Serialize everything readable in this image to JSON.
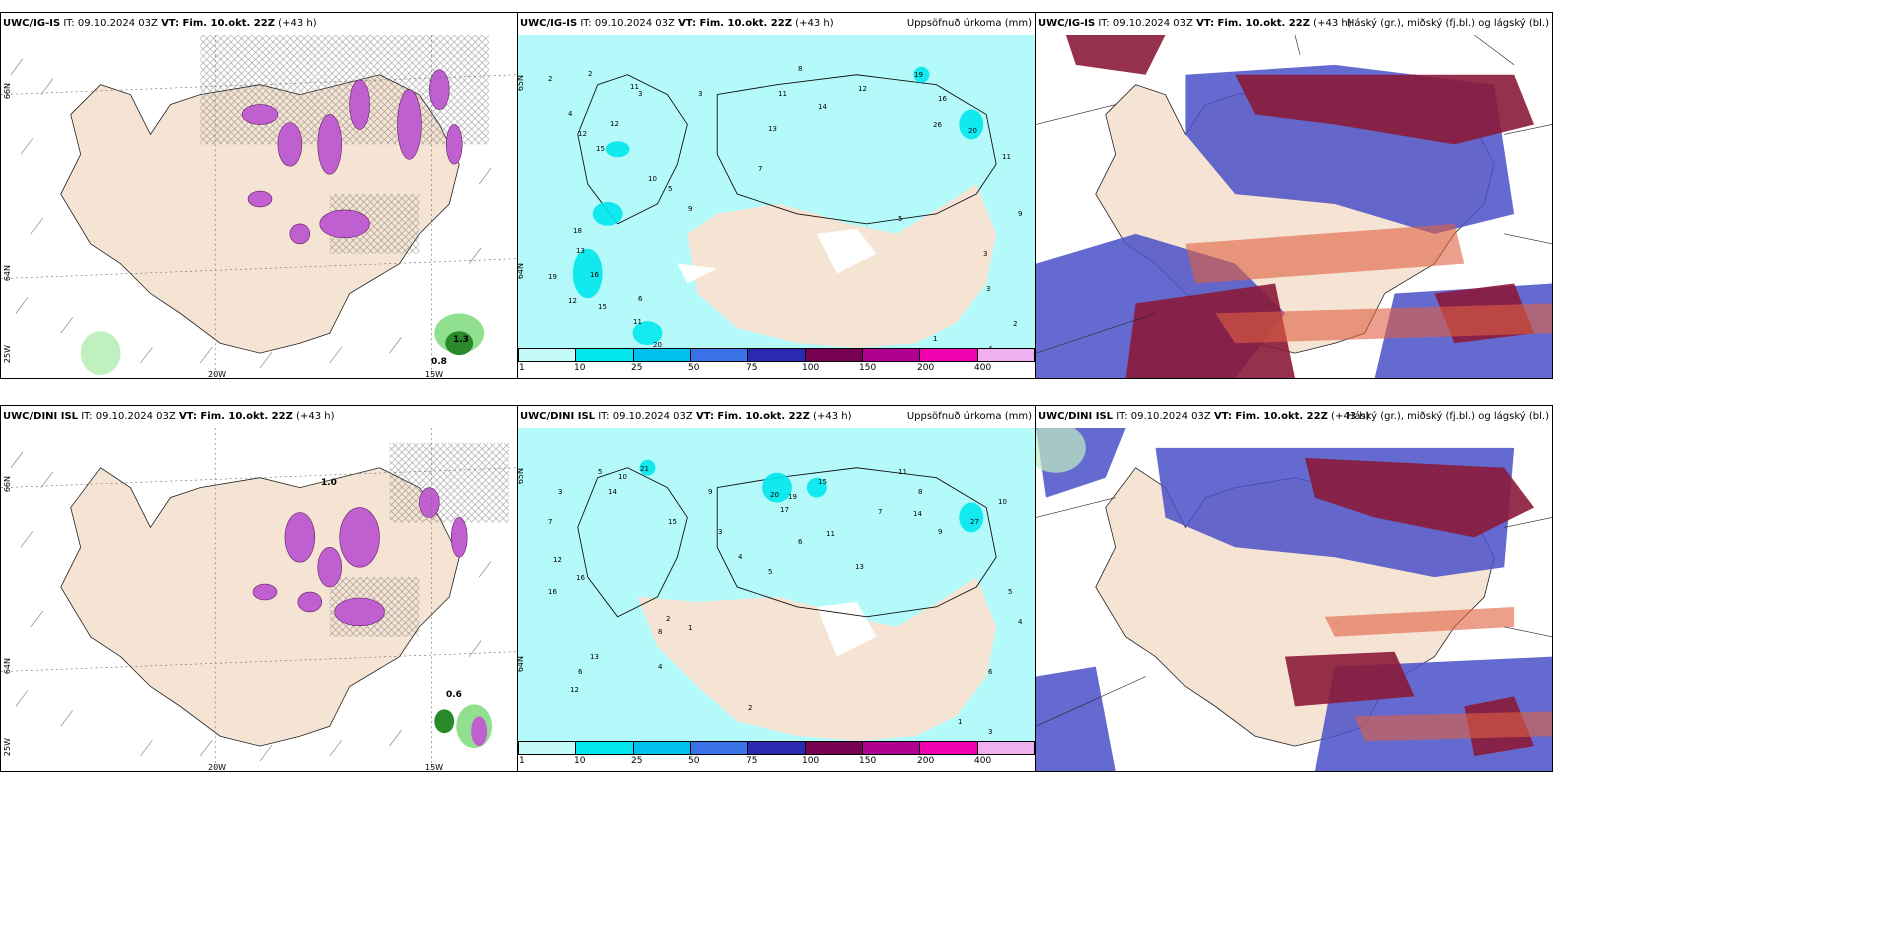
{
  "rows": [
    {
      "model": "UWC/IG-IS",
      "panels": [
        {
          "id": "wind",
          "model": "UWC/IG-IS",
          "it": "IT: 09.10.2024 03Z",
          "vt": "VT: Fim. 10.okt. 22Z",
          "lead": "(+43 h)",
          "right": "",
          "lat_labels": [
            "66N",
            "64N",
            "25W"
          ],
          "lon_labels": [
            "20W",
            "15W"
          ],
          "values": [
            "0.8",
            "1.3"
          ]
        },
        {
          "id": "precip",
          "model": "UWC/IG-IS",
          "it": "IT: 09.10.2024 03Z",
          "vt": "VT: Fim. 10.okt. 22Z",
          "lead": "(+43 h)",
          "right": "Uppsöfnuð úrkoma (mm)",
          "lat_labels": [
            "65N",
            "64N"
          ],
          "numbers": [
            "2",
            "2",
            "3",
            "4",
            "11",
            "12",
            "12",
            "15",
            "18",
            "13",
            "16",
            "19",
            "12",
            "15",
            "11",
            "20",
            "3",
            "5",
            "6",
            "7",
            "8",
            "9",
            "10",
            "11",
            "12",
            "13",
            "14",
            "16",
            "19",
            "26",
            "20",
            "11",
            "9",
            "3",
            "2",
            "5",
            "1",
            "2",
            "2",
            "4",
            "3"
          ]
        },
        {
          "id": "cloud",
          "model": "UWC/IG-IS",
          "it": "IT: 09.10.2024 03Z",
          "vt": "VT: Fim. 10.okt. 22Z",
          "lead": "(+43 h)",
          "right": "Háský (gr.), miðský (fj.bl.) og lágský (bl.)"
        }
      ]
    },
    {
      "model": "UWC/DINI ISL",
      "panels": [
        {
          "id": "wind",
          "model": "UWC/DINI ISL",
          "it": "IT: 09.10.2024 03Z",
          "vt": "VT: Fim. 10.okt. 22Z",
          "lead": "(+43 h)",
          "right": "",
          "lat_labels": [
            "66N",
            "64N",
            "25W"
          ],
          "lon_labels": [
            "20W",
            "15W"
          ],
          "values": [
            "1.0",
            "0.6"
          ]
        },
        {
          "id": "precip",
          "model": "UWC/DINI ISL",
          "it": "IT: 09.10.2024 03Z",
          "vt": "VT: Fim. 10.okt. 22Z",
          "lead": "(+43 h)",
          "right": "Uppsöfnuð úrkoma (mm)",
          "lat_labels": [
            "65N",
            "64N"
          ],
          "numbers": [
            "3",
            "5",
            "7",
            "10",
            "14",
            "15",
            "21",
            "27",
            "20",
            "19",
            "17",
            "11",
            "13",
            "16",
            "12",
            "9",
            "8",
            "6",
            "4",
            "2",
            "1",
            "3",
            "4",
            "5",
            "6",
            "7",
            "8",
            "9",
            "10",
            "11",
            "12",
            "13",
            "14",
            "15",
            "16",
            "2",
            "1",
            "3",
            "4",
            "5",
            "6"
          ]
        },
        {
          "id": "cloud",
          "model": "UWC/DINI ISL",
          "it": "IT: 09.10.2024 03Z",
          "vt": "VT: Fim. 10.okt. 22Z",
          "lead": "(+43 h)",
          "right": "Háský (gr.), miðský (fj.bl.) og lágský (bl.)"
        }
      ]
    }
  ],
  "colorbar": {
    "ticks": [
      "1",
      "10",
      "25",
      "50",
      "75",
      "100",
      "150",
      "200",
      "400"
    ],
    "colors": [
      "#c4fafa",
      "#00e8ee",
      "#00c0ee",
      "#3a70e8",
      "#2a2ab0",
      "#780050",
      "#b00090",
      "#f000b0",
      "#f0b0f0"
    ]
  },
  "colors": {
    "land": "#f5e4d4",
    "sea_precip": "#b5fafa",
    "cloud_high": "#8a1a3a",
    "cloud_mid": "#4a50c8",
    "cloud_low": "#7ab0f8",
    "wind_pink": "#c060d0",
    "wind_green": "#90e090"
  }
}
